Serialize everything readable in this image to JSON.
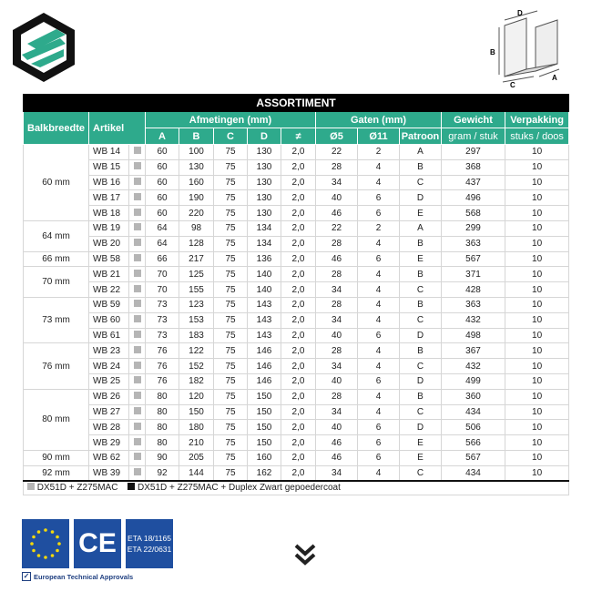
{
  "title": "ASSORTIMENT",
  "headers": {
    "balkbreedte": "Balkbreedte",
    "artikel": "Artikel",
    "afmetingen": "Afmetingen (mm)",
    "gaten": "Gaten (mm)",
    "gewicht": "Gewicht",
    "gewicht_unit": "gram / stuk",
    "verpakking": "Verpakking",
    "verpakking_unit": "stuks / doos",
    "cols": [
      "A",
      "B",
      "C",
      "D",
      "≠",
      "Ø5",
      "Ø11",
      "Patroon"
    ]
  },
  "drawing_labels": [
    "D",
    "B",
    "C",
    "A"
  ],
  "groups": [
    {
      "width": "60 mm",
      "rows": [
        [
          "WB 14",
          "60",
          "100",
          "75",
          "130",
          "2,0",
          "22",
          "2",
          "A",
          "297",
          "10"
        ],
        [
          "WB 15",
          "60",
          "130",
          "75",
          "130",
          "2,0",
          "28",
          "4",
          "B",
          "368",
          "10"
        ],
        [
          "WB 16",
          "60",
          "160",
          "75",
          "130",
          "2,0",
          "34",
          "4",
          "C",
          "437",
          "10"
        ],
        [
          "WB 17",
          "60",
          "190",
          "75",
          "130",
          "2,0",
          "40",
          "6",
          "D",
          "496",
          "10"
        ],
        [
          "WB 18",
          "60",
          "220",
          "75",
          "130",
          "2,0",
          "46",
          "6",
          "E",
          "568",
          "10"
        ]
      ]
    },
    {
      "width": "64 mm",
      "rows": [
        [
          "WB 19",
          "64",
          "98",
          "75",
          "134",
          "2,0",
          "22",
          "2",
          "A",
          "299",
          "10"
        ],
        [
          "WB 20",
          "64",
          "128",
          "75",
          "134",
          "2,0",
          "28",
          "4",
          "B",
          "363",
          "10"
        ]
      ]
    },
    {
      "width": "66 mm",
      "rows": [
        [
          "WB 58",
          "66",
          "217",
          "75",
          "136",
          "2,0",
          "46",
          "6",
          "E",
          "567",
          "10"
        ]
      ]
    },
    {
      "width": "70 mm",
      "rows": [
        [
          "WB 21",
          "70",
          "125",
          "75",
          "140",
          "2,0",
          "28",
          "4",
          "B",
          "371",
          "10"
        ],
        [
          "WB 22",
          "70",
          "155",
          "75",
          "140",
          "2,0",
          "34",
          "4",
          "C",
          "428",
          "10"
        ]
      ]
    },
    {
      "width": "73 mm",
      "rows": [
        [
          "WB 59",
          "73",
          "123",
          "75",
          "143",
          "2,0",
          "28",
          "4",
          "B",
          "363",
          "10"
        ],
        [
          "WB 60",
          "73",
          "153",
          "75",
          "143",
          "2,0",
          "34",
          "4",
          "C",
          "432",
          "10"
        ],
        [
          "WB 61",
          "73",
          "183",
          "75",
          "143",
          "2,0",
          "40",
          "6",
          "D",
          "498",
          "10"
        ]
      ]
    },
    {
      "width": "76 mm",
      "rows": [
        [
          "WB 23",
          "76",
          "122",
          "75",
          "146",
          "2,0",
          "28",
          "4",
          "B",
          "367",
          "10"
        ],
        [
          "WB 24",
          "76",
          "152",
          "75",
          "146",
          "2,0",
          "34",
          "4",
          "C",
          "432",
          "10"
        ],
        [
          "WB 25",
          "76",
          "182",
          "75",
          "146",
          "2,0",
          "40",
          "6",
          "D",
          "499",
          "10"
        ]
      ]
    },
    {
      "width": "80 mm",
      "rows": [
        [
          "WB 26",
          "80",
          "120",
          "75",
          "150",
          "2,0",
          "28",
          "4",
          "B",
          "360",
          "10"
        ],
        [
          "WB 27",
          "80",
          "150",
          "75",
          "150",
          "2,0",
          "34",
          "4",
          "C",
          "434",
          "10"
        ],
        [
          "WB 28",
          "80",
          "180",
          "75",
          "150",
          "2,0",
          "40",
          "6",
          "D",
          "506",
          "10"
        ],
        [
          "WB 29",
          "80",
          "210",
          "75",
          "150",
          "2,0",
          "46",
          "6",
          "E",
          "566",
          "10"
        ]
      ]
    },
    {
      "width": "90 mm",
      "rows": [
        [
          "WB 62",
          "90",
          "205",
          "75",
          "160",
          "2,0",
          "46",
          "6",
          "E",
          "567",
          "10"
        ]
      ]
    },
    {
      "width": "92 mm",
      "rows": [
        [
          "WB 39",
          "92",
          "144",
          "75",
          "162",
          "2,0",
          "34",
          "4",
          "C",
          "434",
          "10"
        ]
      ]
    }
  ],
  "legend": {
    "galvanized": "DX51D + Z275MAC",
    "duplex": "DX51D + Z275MAC + Duplex Zwart gepoedercoat",
    "colors": {
      "galvanized": "#b5b5b5",
      "duplex": "#111111"
    }
  },
  "certs": {
    "eta": [
      "ETA 18/1165",
      "ETA 22/0631"
    ],
    "label": "European Technical Approvals",
    "ce": "CE"
  },
  "colors": {
    "accent": "#2eaa8c",
    "header": "#000000",
    "eu_blue": "#1f4fa0"
  }
}
